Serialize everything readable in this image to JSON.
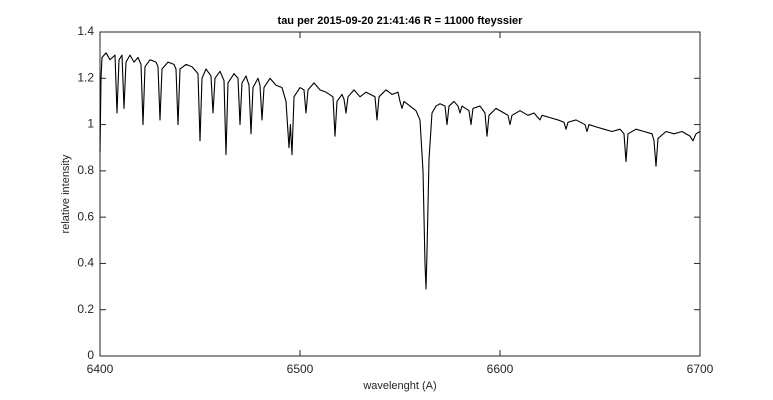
{
  "chart_data": {
    "type": "line",
    "title": "tau per 2015-09-20   21:41:46 R = 11000 fteyssier",
    "xlabel": "wavelenght (A)",
    "ylabel": "relative intensity",
    "color": "#000000",
    "grid": false,
    "xlim": [
      6400,
      6700
    ],
    "xticks": [
      6400,
      6500,
      6600,
      6700
    ],
    "ylim": [
      0,
      1.4
    ],
    "yticks": [
      0,
      0.2,
      0.4,
      0.6,
      0.8,
      1,
      1.2,
      1.4
    ],
    "x": [
      6400,
      6400.5,
      6401,
      6403,
      6405,
      6407.5,
      6408.5,
      6409.5,
      6411,
      6412,
      6413,
      6415,
      6417,
      6419,
      6420.5,
      6421.5,
      6422.5,
      6425,
      6428,
      6429,
      6430,
      6431,
      6434,
      6437,
      6438,
      6439,
      6440,
      6443,
      6446,
      6449,
      6450,
      6451,
      6453,
      6455.5,
      6456.5,
      6457.5,
      6460,
      6462,
      6463,
      6464,
      6467,
      6469,
      6470,
      6471,
      6473,
      6474.5,
      6475.5,
      6476.5,
      6479,
      6480,
      6481,
      6482,
      6485,
      6488,
      6491,
      6493,
      6494.5,
      6495.2,
      6496,
      6497,
      6500,
      6502,
      6503,
      6504,
      6507,
      6510,
      6513,
      6516.5,
      6517.5,
      6518.5,
      6521,
      6522,
      6523,
      6524,
      6527,
      6530,
      6533,
      6537.5,
      6538.5,
      6539.5,
      6543,
      6546,
      6549,
      6550,
      6551,
      6552,
      6555,
      6558,
      6560,
      6561.5,
      6562.5,
      6563,
      6563.5,
      6564.5,
      6566,
      6568,
      6570,
      6572.5,
      6573.5,
      6574.5,
      6577,
      6579,
      6580,
      6581,
      6584.5,
      6585.5,
      6586.5,
      6590,
      6592.5,
      6593.5,
      6594.5,
      6598,
      6602,
      6604,
      6605,
      6606,
      6610,
      6614,
      6617,
      6619,
      6620,
      6621,
      6625,
      6629,
      6632,
      6633,
      6634,
      6638,
      6642.5,
      6643.5,
      6644.5,
      6648,
      6652,
      6656,
      6660,
      6662,
      6663,
      6664,
      6668,
      6672,
      6676,
      6677,
      6678,
      6679,
      6683,
      6687,
      6691,
      6695,
      6696.5,
      6698,
      6700
    ],
    "values": [
      0.88,
      1.2,
      1.29,
      1.31,
      1.28,
      1.3,
      1.05,
      1.28,
      1.3,
      1.07,
      1.27,
      1.3,
      1.27,
      1.29,
      1.26,
      1.0,
      1.25,
      1.28,
      1.27,
      1.25,
      1.02,
      1.24,
      1.27,
      1.26,
      1.24,
      1.0,
      1.24,
      1.26,
      1.25,
      1.22,
      0.93,
      1.2,
      1.24,
      1.21,
      1.05,
      1.2,
      1.23,
      1.19,
      0.87,
      1.18,
      1.22,
      1.2,
      1.0,
      1.18,
      1.21,
      1.17,
      0.96,
      1.16,
      1.2,
      1.17,
      1.02,
      1.16,
      1.2,
      1.17,
      1.16,
      1.1,
      0.9,
      1.0,
      0.87,
      1.12,
      1.16,
      1.15,
      1.05,
      1.15,
      1.18,
      1.15,
      1.14,
      1.12,
      0.95,
      1.1,
      1.13,
      1.11,
      1.05,
      1.12,
      1.15,
      1.12,
      1.14,
      1.12,
      1.02,
      1.12,
      1.15,
      1.13,
      1.14,
      1.1,
      1.07,
      1.1,
      1.08,
      1.06,
      1.02,
      0.8,
      0.4,
      0.29,
      0.45,
      0.85,
      1.05,
      1.08,
      1.09,
      1.08,
      1.0,
      1.08,
      1.1,
      1.08,
      1.05,
      1.08,
      1.06,
      1.0,
      1.07,
      1.08,
      1.05,
      0.95,
      1.04,
      1.07,
      1.05,
      1.04,
      1.0,
      1.04,
      1.06,
      1.04,
      1.05,
      1.03,
      1.02,
      1.04,
      1.03,
      1.02,
      1.01,
      0.98,
      1.01,
      1.02,
      1.0,
      0.97,
      1.0,
      0.99,
      0.98,
      0.97,
      0.98,
      0.96,
      0.84,
      0.96,
      0.98,
      0.97,
      0.96,
      0.93,
      0.82,
      0.94,
      0.97,
      0.96,
      0.97,
      0.95,
      0.93,
      0.96,
      0.97
    ]
  }
}
